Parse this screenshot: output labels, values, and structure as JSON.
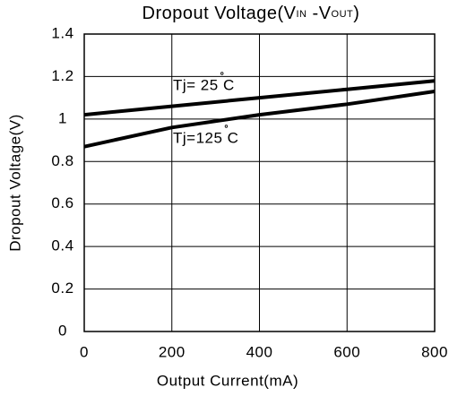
{
  "chart_data": {
    "type": "line",
    "title_parts": [
      "Dropout Voltage(V",
      "IN",
      " -V",
      "OUT",
      ")"
    ],
    "x_label": "Output Current(mA)",
    "y_label": "Dropout Voltage(V)",
    "x": [
      0,
      200,
      400,
      600,
      800
    ],
    "series": [
      {
        "name": "Tj= 25 C",
        "color": "#000000",
        "values": [
          1.02,
          1.06,
          1.1,
          1.14,
          1.18
        ]
      },
      {
        "name": "Tj=125 C",
        "color": "#000000",
        "values": [
          0.87,
          0.96,
          1.02,
          1.07,
          1.13
        ]
      }
    ],
    "xlim": [
      0,
      800
    ],
    "xticks": [
      0,
      200,
      400,
      600,
      800
    ],
    "ylim": [
      0,
      1.4
    ],
    "yticks": [
      0,
      0.2,
      0.4,
      0.6,
      0.8,
      1,
      1.2,
      1.4
    ],
    "grid": true
  }
}
